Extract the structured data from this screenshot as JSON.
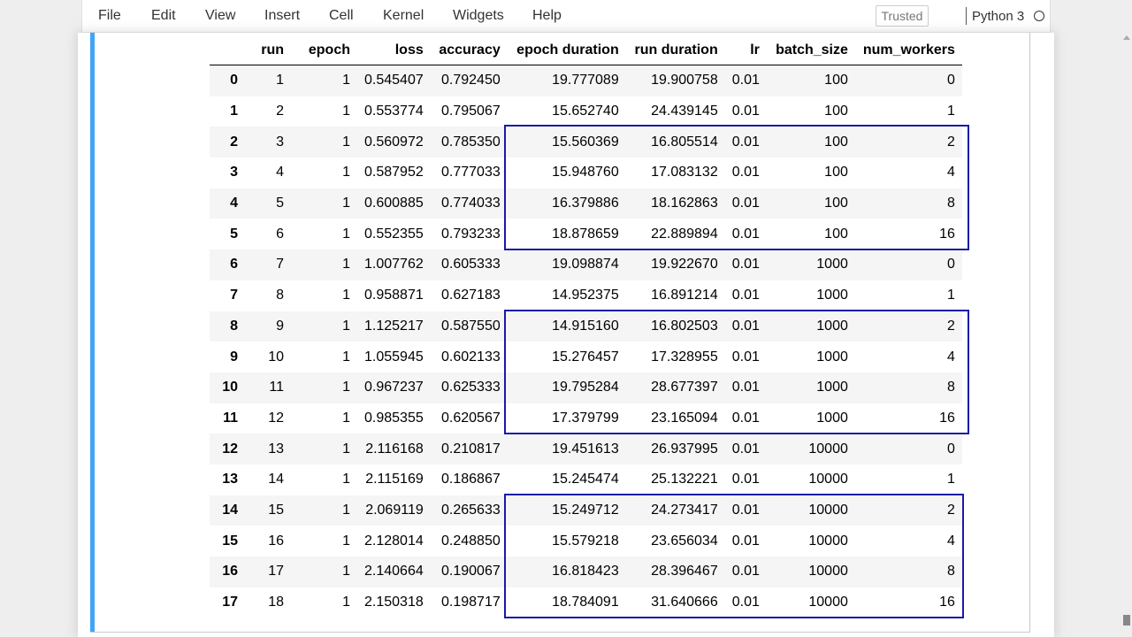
{
  "menubar": {
    "items": [
      "File",
      "Edit",
      "View",
      "Insert",
      "Cell",
      "Kernel",
      "Widgets",
      "Help"
    ],
    "trusted_label": "Trusted",
    "kernel_name": "Python 3",
    "kernel_status": "idle"
  },
  "table": {
    "columns": [
      "run",
      "epoch",
      "loss",
      "accuracy",
      "epoch duration",
      "run duration",
      "lr",
      "batch_size",
      "num_workers"
    ],
    "rows": [
      {
        "index": "0",
        "cells": [
          "1",
          "1",
          "0.545407",
          "0.792450",
          "19.777089",
          "19.900758",
          "0.01",
          "100",
          "0"
        ]
      },
      {
        "index": "1",
        "cells": [
          "2",
          "1",
          "0.553774",
          "0.795067",
          "15.652740",
          "24.439145",
          "0.01",
          "100",
          "1"
        ]
      },
      {
        "index": "2",
        "cells": [
          "3",
          "1",
          "0.560972",
          "0.785350",
          "15.560369",
          "16.805514",
          "0.01",
          "100",
          "2"
        ]
      },
      {
        "index": "3",
        "cells": [
          "4",
          "1",
          "0.587952",
          "0.777033",
          "15.948760",
          "17.083132",
          "0.01",
          "100",
          "4"
        ]
      },
      {
        "index": "4",
        "cells": [
          "5",
          "1",
          "0.600885",
          "0.774033",
          "16.379886",
          "18.162863",
          "0.01",
          "100",
          "8"
        ]
      },
      {
        "index": "5",
        "cells": [
          "6",
          "1",
          "0.552355",
          "0.793233",
          "18.878659",
          "22.889894",
          "0.01",
          "100",
          "16"
        ]
      },
      {
        "index": "6",
        "cells": [
          "7",
          "1",
          "1.007762",
          "0.605333",
          "19.098874",
          "19.922670",
          "0.01",
          "1000",
          "0"
        ]
      },
      {
        "index": "7",
        "cells": [
          "8",
          "1",
          "0.958871",
          "0.627183",
          "14.952375",
          "16.891214",
          "0.01",
          "1000",
          "1"
        ]
      },
      {
        "index": "8",
        "cells": [
          "9",
          "1",
          "1.125217",
          "0.587550",
          "14.915160",
          "16.802503",
          "0.01",
          "1000",
          "2"
        ]
      },
      {
        "index": "9",
        "cells": [
          "10",
          "1",
          "1.055945",
          "0.602133",
          "15.276457",
          "17.328955",
          "0.01",
          "1000",
          "4"
        ]
      },
      {
        "index": "10",
        "cells": [
          "11",
          "1",
          "0.967237",
          "0.625333",
          "19.795284",
          "28.677397",
          "0.01",
          "1000",
          "8"
        ]
      },
      {
        "index": "11",
        "cells": [
          "12",
          "1",
          "0.985355",
          "0.620567",
          "17.379799",
          "23.165094",
          "0.01",
          "1000",
          "16"
        ]
      },
      {
        "index": "12",
        "cells": [
          "13",
          "1",
          "2.116168",
          "0.210817",
          "19.451613",
          "26.937995",
          "0.01",
          "10000",
          "0"
        ]
      },
      {
        "index": "13",
        "cells": [
          "14",
          "1",
          "2.115169",
          "0.186867",
          "15.245474",
          "25.132221",
          "0.01",
          "10000",
          "1"
        ]
      },
      {
        "index": "14",
        "cells": [
          "15",
          "1",
          "2.069119",
          "0.265633",
          "15.249712",
          "24.273417",
          "0.01",
          "10000",
          "2"
        ]
      },
      {
        "index": "15",
        "cells": [
          "16",
          "1",
          "2.128014",
          "0.248850",
          "15.579218",
          "23.656034",
          "0.01",
          "10000",
          "4"
        ]
      },
      {
        "index": "16",
        "cells": [
          "17",
          "1",
          "2.140664",
          "0.190067",
          "16.818423",
          "28.396467",
          "0.01",
          "10000",
          "8"
        ]
      },
      {
        "index": "17",
        "cells": [
          "18",
          "1",
          "2.150318",
          "0.198717",
          "18.784091",
          "31.640666",
          "0.01",
          "10000",
          "16"
        ]
      }
    ]
  },
  "highlights": {
    "color": "#1a1aa6",
    "groups": [
      {
        "first_row": 2,
        "last_row": 5
      },
      {
        "first_row": 8,
        "last_row": 11
      },
      {
        "first_row": 14,
        "last_row": 17
      }
    ]
  },
  "colors": {
    "cell_selected_bar": "#42a5f5",
    "striped_row": "#f5f5f5"
  }
}
